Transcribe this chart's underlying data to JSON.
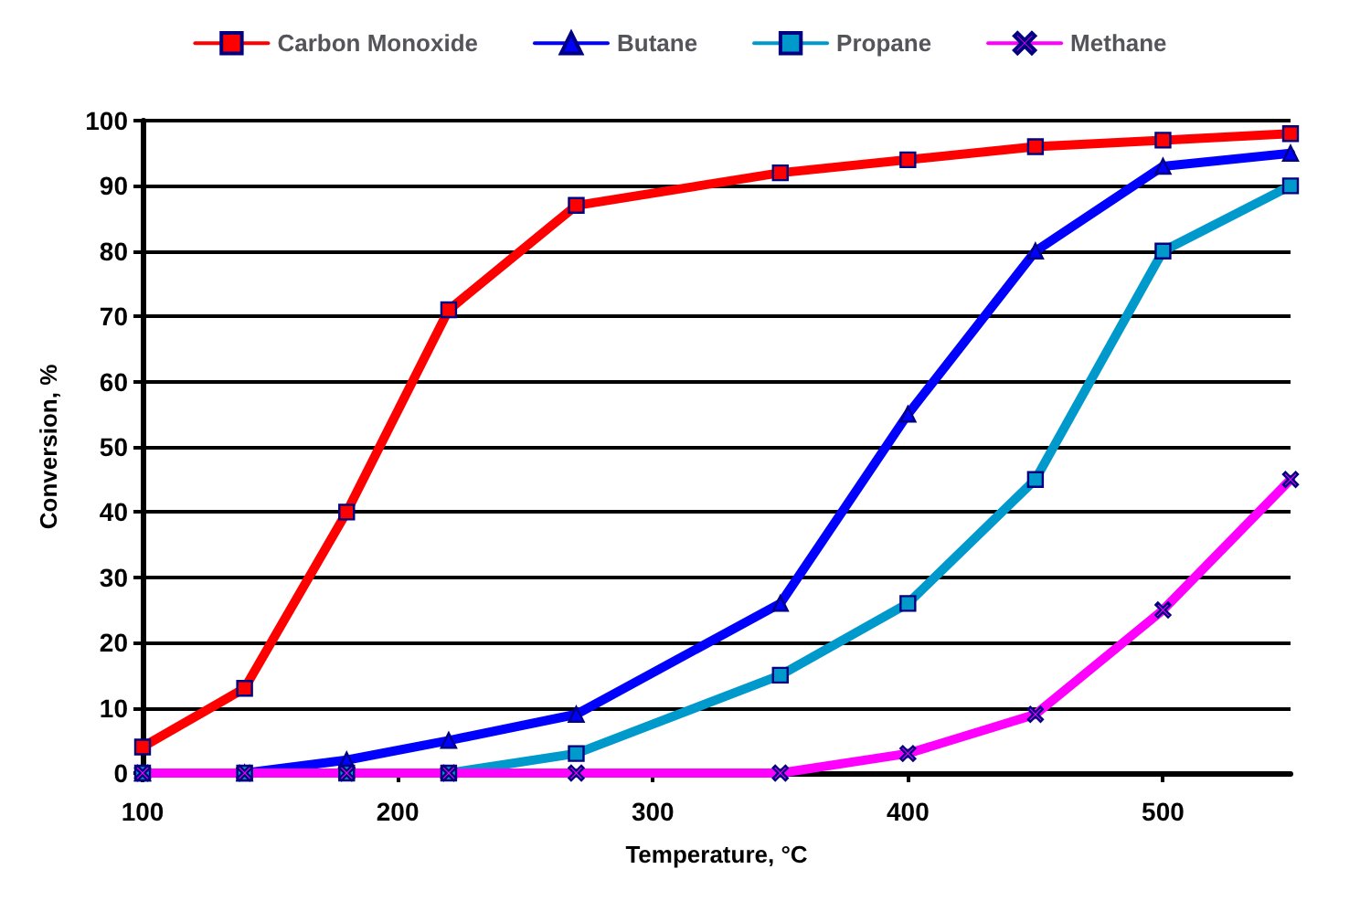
{
  "chart_data": {
    "type": "line",
    "xlabel": "Temperature, °C",
    "ylabel": "Conversion, %",
    "x": [
      100,
      140,
      180,
      220,
      270,
      350,
      400,
      450,
      500,
      550
    ],
    "xlim": [
      100,
      550
    ],
    "xticks": [
      100,
      200,
      300,
      400,
      500
    ],
    "ylim": [
      0,
      100
    ],
    "yticks": [
      0,
      10,
      20,
      30,
      40,
      50,
      60,
      70,
      80,
      90,
      100
    ],
    "grid": "y",
    "legend": "top",
    "series": [
      {
        "name": "Carbon Monoxide",
        "color": "#ff0000",
        "marker": "square",
        "values": [
          4,
          13,
          40,
          71,
          87,
          92,
          94,
          96,
          97,
          98
        ]
      },
      {
        "name": "Butane",
        "color": "#0000ff",
        "marker": "triangle",
        "values": [
          0,
          0,
          2,
          5,
          9,
          26,
          55,
          80,
          93,
          95
        ]
      },
      {
        "name": "Propane",
        "color": "#0099cc",
        "marker": "square",
        "values": [
          0,
          0,
          0,
          0,
          3,
          15,
          26,
          45,
          80,
          90
        ]
      },
      {
        "name": "Methane",
        "color": "#ff00ff",
        "marker": "cross",
        "values": [
          0,
          0,
          0,
          0,
          0,
          0,
          3,
          9,
          25,
          45
        ]
      }
    ]
  }
}
